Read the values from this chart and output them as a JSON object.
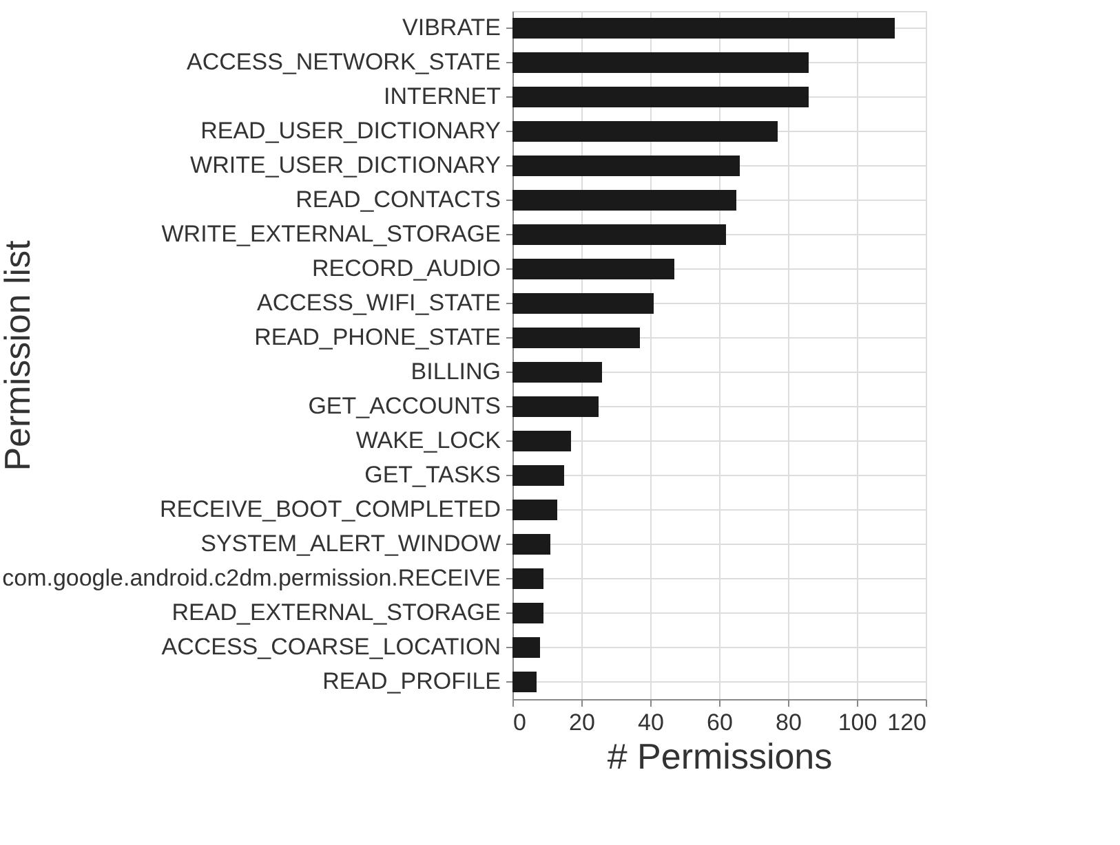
{
  "chart_data": {
    "type": "bar",
    "orientation": "horizontal",
    "xlabel": "# Permissions",
    "ylabel": "Permission list",
    "categories": [
      "VIBRATE",
      "ACCESS_NETWORK_STATE",
      "INTERNET",
      "READ_USER_DICTIONARY",
      "WRITE_USER_DICTIONARY",
      "READ_CONTACTS",
      "WRITE_EXTERNAL_STORAGE",
      "RECORD_AUDIO",
      "ACCESS_WIFI_STATE",
      "READ_PHONE_STATE",
      "BILLING",
      "GET_ACCOUNTS",
      "WAKE_LOCK",
      "GET_TASKS",
      "RECEIVE_BOOT_COMPLETED",
      "SYSTEM_ALERT_WINDOW",
      "com.google.android.c2dm.permission.RECEIVE",
      "READ_EXTERNAL_STORAGE",
      "ACCESS_COARSE_LOCATION",
      "READ_PROFILE"
    ],
    "values": [
      111,
      86,
      86,
      77,
      66,
      65,
      62,
      47,
      41,
      37,
      26,
      25,
      17,
      15,
      13,
      11,
      9,
      9,
      8,
      7
    ],
    "color": "#1a1a1a",
    "xlim": [
      0,
      120
    ],
    "xticks": [
      0,
      20,
      40,
      60,
      80,
      100,
      120
    ],
    "grid": true
  }
}
